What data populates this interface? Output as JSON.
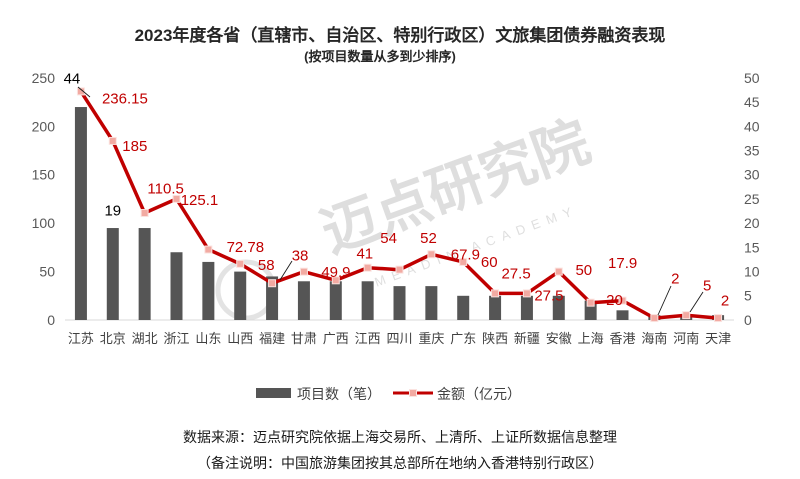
{
  "chart_data": {
    "type": "bar",
    "title": "2023年度各省（直辖市、自治区、特别行政区）文旅集团债券融资表现",
    "subtitle": "(按项目数量从多到少排序)",
    "categories": [
      "江苏",
      "北京",
      "湖北",
      "浙江",
      "山东",
      "山西",
      "福建",
      "甘肃",
      "广西",
      "江西",
      "四川",
      "重庆",
      "广东",
      "陕西",
      "新疆",
      "安徽",
      "上海",
      "香港",
      "海南",
      "河南",
      "天津"
    ],
    "series": [
      {
        "name": "项目数（笔）",
        "type": "bar",
        "axis": "right",
        "values": [
          44,
          19,
          19,
          14,
          12,
          10,
          9,
          8,
          8,
          8,
          7,
          7,
          5,
          5,
          5,
          5,
          4,
          2,
          1,
          1,
          1
        ],
        "labels": [
          44,
          19,
          null,
          null,
          null,
          null,
          null,
          null,
          null,
          null,
          null,
          null,
          null,
          null,
          null,
          null,
          null,
          null,
          null,
          null,
          null
        ]
      },
      {
        "name": "金额（亿元）",
        "type": "line",
        "axis": "left",
        "values": [
          236.15,
          185,
          110.5,
          125.1,
          72.78,
          58,
          38,
          49.9,
          41,
          54,
          52,
          67.9,
          60,
          27.5,
          27.5,
          50,
          17.9,
          20,
          2,
          5,
          2
        ]
      }
    ],
    "ylim": [
      0,
      250
    ],
    "y_ticks": [
      0,
      50,
      100,
      150,
      200,
      250
    ],
    "y2lim": [
      0,
      50
    ],
    "y2_ticks": [
      0,
      5,
      10,
      15,
      20,
      25,
      30,
      35,
      40,
      45,
      50
    ],
    "grid": false,
    "legend_position": "bottom"
  },
  "footer": {
    "source": "数据来源：迈点研究院依据上海交易所、上清所、上证所数据信息整理",
    "note": "（备注说明：中国旅游集团按其总部所在地纳入香港特别行政区）"
  },
  "watermark": {
    "cn": "迈点研究院",
    "en": "MEADIN ACADEMY"
  },
  "colors": {
    "bar": "#555555",
    "line": "#c00000",
    "marker": "#f2aaa2",
    "line_label": "#c00000",
    "bar_label": "#000000",
    "tick": "#595959"
  }
}
